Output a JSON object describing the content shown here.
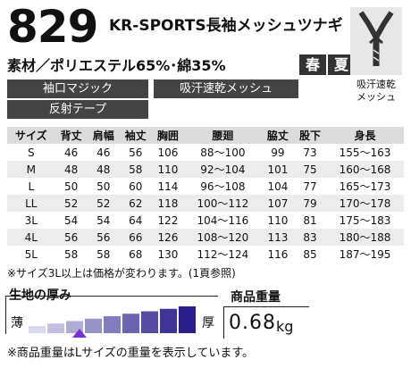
{
  "product": {
    "code": "829",
    "name": "KR-SPORTS長袖メッシュツナギ",
    "material": "素材／ポリエステル65%･綿35%",
    "seasons": [
      "春",
      "夏"
    ]
  },
  "features": [
    "袖口マジック",
    "吸汗速乾メッシュ",
    "反射テープ"
  ],
  "icon": {
    "name": "quick-dry-mesh-icon",
    "caption_line1": "吸汗速乾",
    "caption_line2": "メッシュ"
  },
  "size_table": {
    "headers": [
      "サイズ",
      "背丈",
      "肩幅",
      "袖丈",
      "胸囲",
      "腰廻",
      "脇丈",
      "股下",
      "身長"
    ],
    "rows": [
      [
        "S",
        "46",
        "46",
        "56",
        "106",
        "88～100",
        "99",
        "73",
        "155～163"
      ],
      [
        "M",
        "48",
        "48",
        "58",
        "110",
        "92～104",
        "101",
        "75",
        "160～168"
      ],
      [
        "L",
        "50",
        "50",
        "60",
        "114",
        "96～108",
        "104",
        "77",
        "165～173"
      ],
      [
        "LL",
        "52",
        "52",
        "62",
        "118",
        "100～112",
        "107",
        "79",
        "170～178"
      ],
      [
        "3L",
        "54",
        "54",
        "64",
        "122",
        "104～116",
        "110",
        "81",
        "175～183"
      ],
      [
        "4L",
        "56",
        "56",
        "66",
        "126",
        "108～120",
        "113",
        "83",
        "180～188"
      ],
      [
        "5L",
        "58",
        "58",
        "68",
        "130",
        "112～124",
        "116",
        "85",
        "187～195"
      ]
    ],
    "note": "※サイズ3L以上は価格が変わります。(1頁参照)"
  },
  "thickness": {
    "label": "生地の厚み",
    "thin": "薄",
    "thick": "厚",
    "level": 0.2
  },
  "weight": {
    "label": "商品重量",
    "value": "0.68",
    "unit": "kg",
    "note": "※商品重量はLサイズの重量を表示しています。"
  },
  "colors": {
    "dark": "#333333",
    "bar_light": "#d8d8ef",
    "bar_dark": "#2a1f8a",
    "marker": "#7b2fd0"
  }
}
